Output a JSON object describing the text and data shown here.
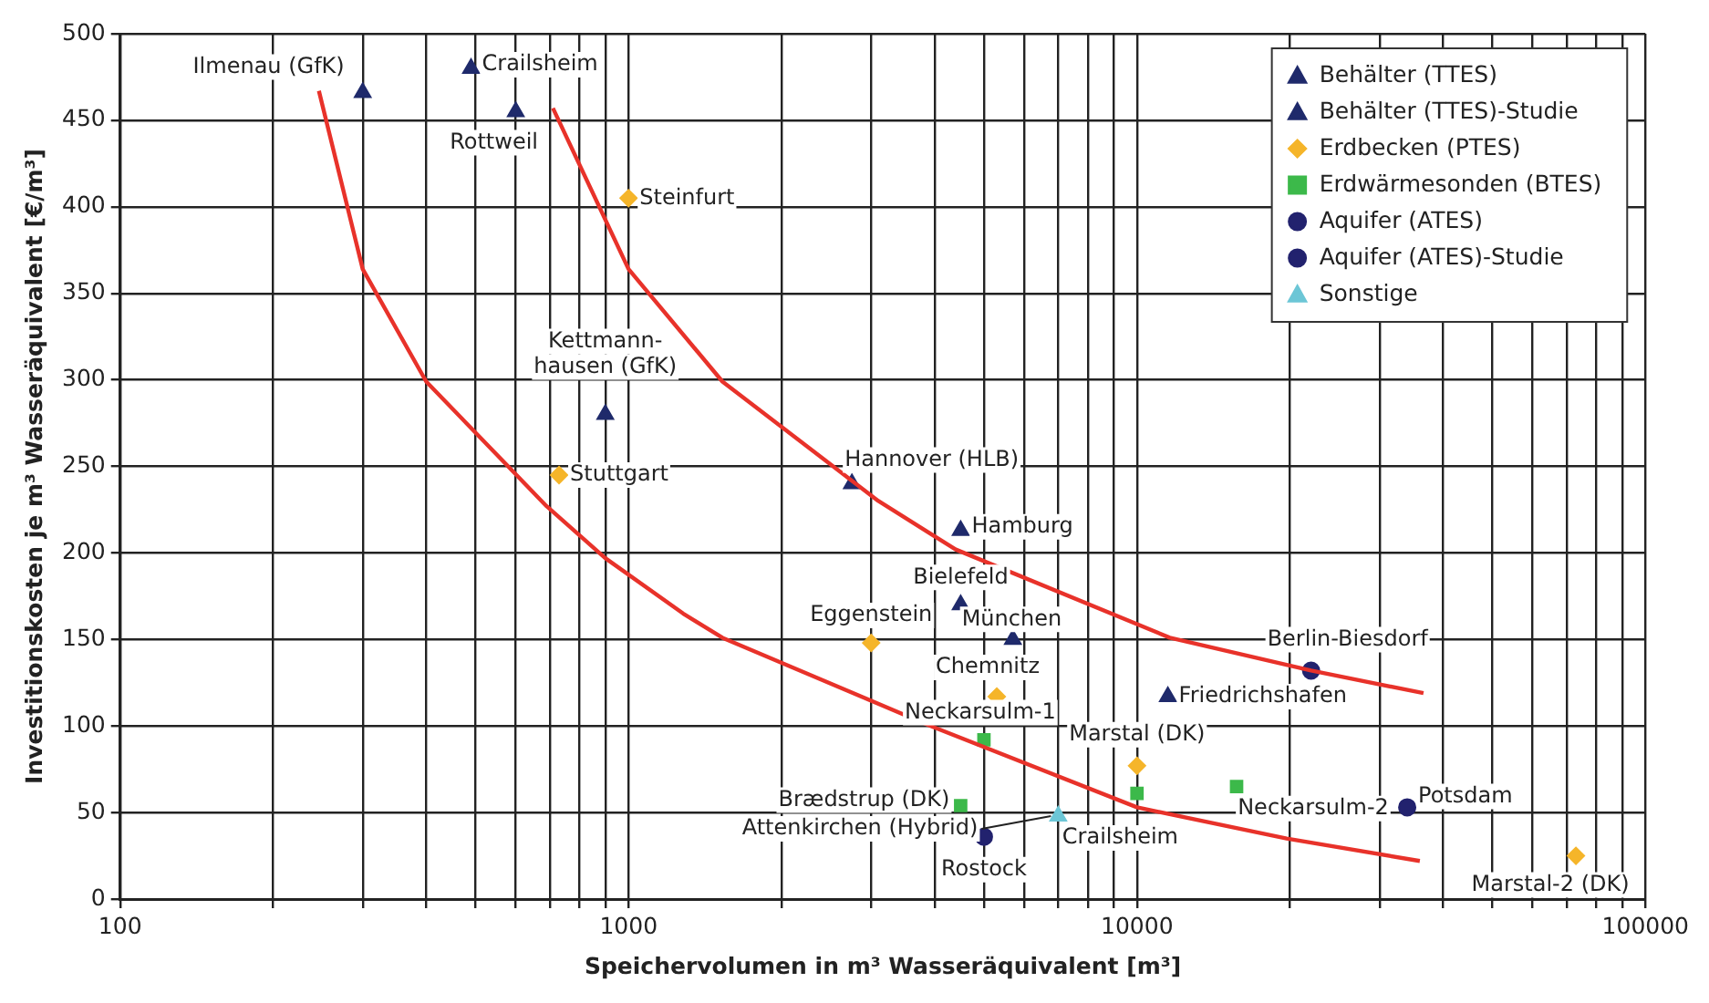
{
  "chart_data": {
    "type": "scatter",
    "xlabel": "Speichervolumen in m³ Wasseräquivalent [m³]",
    "ylabel": "Investitionskosten je m³ Wasseräquivalent [€/m³]",
    "log": "x",
    "xlim": [
      100,
      100000
    ],
    "ylim": [
      0,
      500
    ],
    "xticks": [
      100,
      {
        "value": 200,
        "label": null
      },
      {
        "value": 300,
        "label": null
      },
      {
        "value": 400,
        "label": null
      },
      {
        "value": 500,
        "label": null
      },
      {
        "value": 600,
        "label": null
      },
      {
        "value": 700,
        "label": null
      },
      {
        "value": 800,
        "label": null
      },
      {
        "value": 900,
        "label": null
      },
      1000,
      {
        "value": 2000,
        "label": null
      },
      {
        "value": 3000,
        "label": null
      },
      {
        "value": 4000,
        "label": null
      },
      {
        "value": 5000,
        "label": null
      },
      {
        "value": 6000,
        "label": null
      },
      {
        "value": 7000,
        "label": null
      },
      {
        "value": 8000,
        "label": null
      },
      {
        "value": 9000,
        "label": null
      },
      10000,
      {
        "value": 20000,
        "label": null
      },
      {
        "value": 30000,
        "label": null
      },
      {
        "value": 40000,
        "label": null
      },
      {
        "value": 50000,
        "label": null
      },
      {
        "value": 60000,
        "label": null
      },
      {
        "value": 70000,
        "label": null
      },
      {
        "value": 80000,
        "label": null
      },
      {
        "value": 90000,
        "label": null
      },
      100000
    ],
    "yticks": [
      0,
      50,
      100,
      150,
      200,
      250,
      300,
      350,
      400,
      450,
      500
    ],
    "grid": true,
    "legend": "top right",
    "series": [
      {
        "name": "Behälter (TTES)",
        "color": "#1f2a6b",
        "marker": "triangle",
        "x": [
          300,
          490,
          600,
          2750,
          4500,
          5700,
          11500
        ],
        "values": [
          466,
          480,
          455,
          240,
          213,
          150,
          117
        ]
      },
      {
        "name": "Behälter (TTES)-Studie",
        "color": "#1f2a6b",
        "marker": "triangle",
        "x": [
          900,
          4500
        ],
        "values": [
          280,
          170
        ]
      },
      {
        "name": "Erdbecken (PTES)",
        "color": "#f5b52a",
        "marker": "diamond",
        "x": [
          1000,
          730,
          3000,
          5300,
          10000,
          73000
        ],
        "values": [
          405,
          245,
          148,
          117,
          77,
          25
        ]
      },
      {
        "name": "Erdwärmesonden (BTES)",
        "color": "#3cb94a",
        "marker": "square",
        "x": [
          5000,
          10000,
          15700,
          4500
        ],
        "values": [
          92,
          61,
          65,
          54
        ]
      },
      {
        "name": "Aquifer (ATES)",
        "color": "#22226e",
        "marker": "circle",
        "x": [
          5000
        ],
        "values": [
          36
        ]
      },
      {
        "name": "Aquifer (ATES)-Studie",
        "color": "#22226e",
        "marker": "circle",
        "x": [
          22000,
          34000
        ],
        "values": [
          132,
          53
        ]
      },
      {
        "name": "Sonstige",
        "color": "#6cc6d6",
        "marker": "triangle",
        "x": [
          7000
        ],
        "values": [
          48
        ]
      },
      {
        "type": "line",
        "color": "#e8322a",
        "marker": "none",
        "x": [
          246,
          300,
          400,
          690,
          900,
          1280,
          1530,
          3930,
          10000,
          19700,
          36000
        ],
        "values": [
          467,
          364,
          299,
          227,
          197,
          165,
          151,
          100,
          53,
          35,
          22
        ]
      },
      {
        "type": "line",
        "color": "#e8322a",
        "marker": "none",
        "x": [
          710,
          1000,
          1530,
          3100,
          4400,
          11600,
          22000,
          36600
        ],
        "values": [
          457,
          364,
          299,
          230,
          202,
          151,
          132,
          119
        ]
      }
    ],
    "annotations": [
      {
        "text": "Ilmenau (GfK)",
        "x": 300,
        "y": 466
      },
      {
        "text": "Crailsheim",
        "x": 490,
        "y": 480
      },
      {
        "text": "Rottweil",
        "x": 600,
        "y": 455
      },
      {
        "text": "Steinfurt",
        "x": 1000,
        "y": 405
      },
      {
        "text": "Kettmann-\nhausen (GfK)",
        "x": 900,
        "y": 280
      },
      {
        "text": "Stuttgart",
        "x": 730,
        "y": 245
      },
      {
        "text": "Hannover (HLB)",
        "x": 2750,
        "y": 240
      },
      {
        "text": "Hamburg",
        "x": 4500,
        "y": 213
      },
      {
        "text": "Bielefeld",
        "x": 4500,
        "y": 170
      },
      {
        "text": "München",
        "x": 5700,
        "y": 150
      },
      {
        "text": "Eggenstein",
        "x": 3000,
        "y": 148
      },
      {
        "text": "Chemnitz",
        "x": 5300,
        "y": 117
      },
      {
        "text": "Friedrichshafen",
        "x": 11500,
        "y": 117
      },
      {
        "text": "Berlin-Biesdorf",
        "x": 22000,
        "y": 132
      },
      {
        "text": "Neckarsulm-1",
        "x": 5000,
        "y": 92
      },
      {
        "text": "Marstal (DK)",
        "x": 10000,
        "y": 77
      },
      {
        "text": "Neckarsulm-2",
        "x": 15700,
        "y": 65
      },
      {
        "text": "Brædstrup (DK)",
        "x": 4500,
        "y": 54
      },
      {
        "text": "Attenkirchen (Hybrid)",
        "x": 7000,
        "y": 48
      },
      {
        "text": "Rostock",
        "x": 5000,
        "y": 36
      },
      {
        "text": "Crailsheim",
        "x": 7000,
        "y": 48
      },
      {
        "text": "Potsdam",
        "x": 34000,
        "y": 53
      },
      {
        "text": "Marstal-2 (DK)",
        "x": 73000,
        "y": 25
      }
    ]
  }
}
